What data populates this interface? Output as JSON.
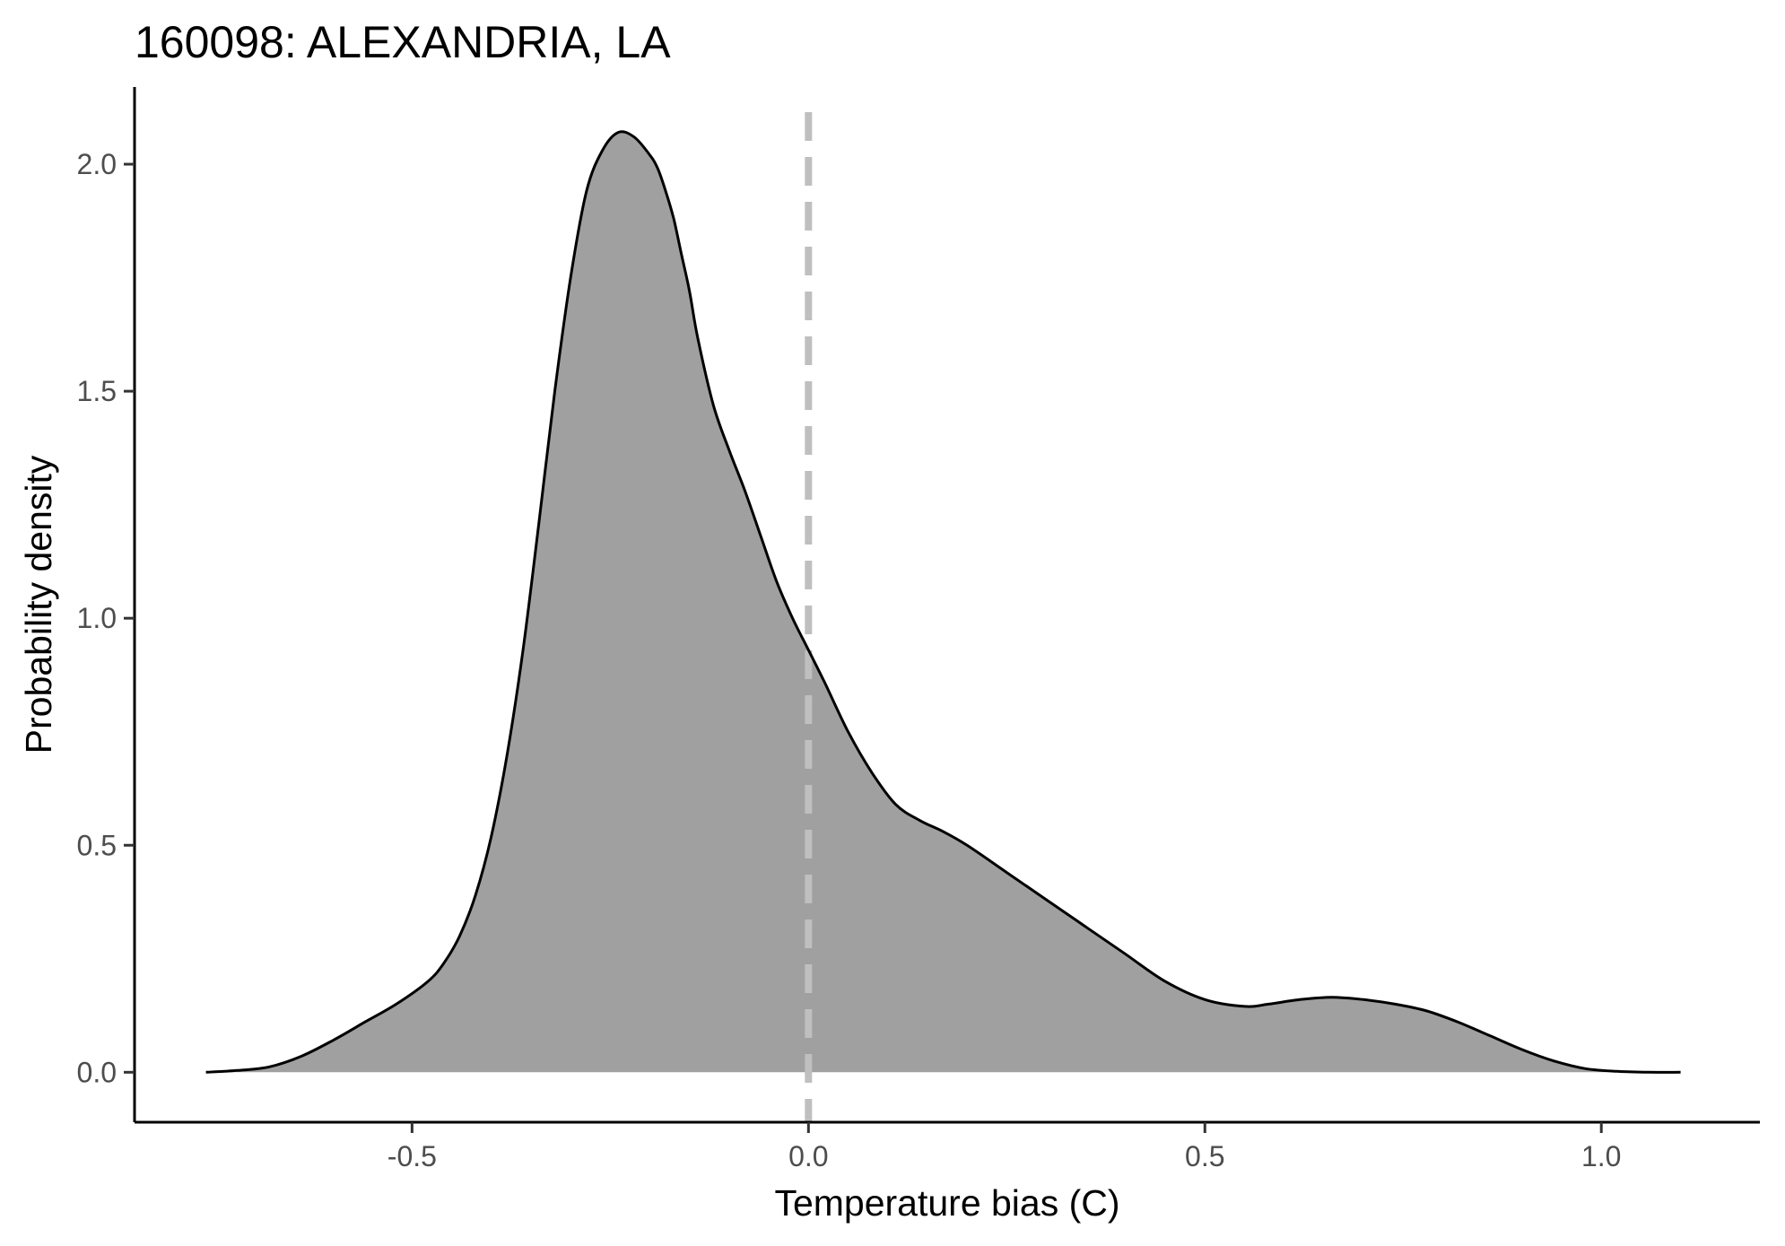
{
  "chart_data": {
    "type": "area",
    "title": "160098: ALEXANDRIA, LA",
    "xlabel": "Temperature bias (C)",
    "ylabel": "Probability density",
    "xlim": [
      -0.85,
      1.2
    ],
    "ylim": [
      -0.11,
      2.17
    ],
    "x_ticks": [
      -0.5,
      0.0,
      0.5,
      1.0
    ],
    "x_tick_labels": [
      "-0.5",
      "0.0",
      "0.5",
      "1.0"
    ],
    "y_ticks": [
      0.0,
      0.5,
      1.0,
      1.5,
      2.0
    ],
    "y_tick_labels": [
      "0.0",
      "0.5",
      "1.0",
      "1.5",
      "2.0"
    ],
    "grid": false,
    "legend": "none",
    "reference_line": {
      "x": 0.0,
      "style": "dashed",
      "color": "#bfbfbf"
    },
    "fill_color": "#a0a0a0",
    "line_color": "#000000",
    "series": [
      {
        "x": [
          -0.76,
          -0.72,
          -0.68,
          -0.64,
          -0.6,
          -0.56,
          -0.52,
          -0.48,
          -0.46,
          -0.44,
          -0.42,
          -0.4,
          -0.38,
          -0.36,
          -0.34,
          -0.32,
          -0.3,
          -0.28,
          -0.26,
          -0.24,
          -0.22,
          -0.2,
          -0.19,
          -0.18,
          -0.17,
          -0.16,
          -0.15,
          -0.14,
          -0.12,
          -0.1,
          -0.08,
          -0.06,
          -0.04,
          -0.02,
          0.0,
          0.02,
          0.05,
          0.08,
          0.11,
          0.14,
          0.17,
          0.2,
          0.25,
          0.3,
          0.35,
          0.4,
          0.45,
          0.5,
          0.55,
          0.58,
          0.62,
          0.66,
          0.7,
          0.74,
          0.78,
          0.82,
          0.86,
          0.9,
          0.94,
          0.98,
          1.02,
          1.06,
          1.1
        ],
        "y": [
          0.0,
          0.004,
          0.012,
          0.035,
          0.07,
          0.11,
          0.15,
          0.2,
          0.24,
          0.3,
          0.39,
          0.52,
          0.7,
          0.93,
          1.21,
          1.5,
          1.75,
          1.94,
          2.03,
          2.07,
          2.06,
          2.02,
          1.99,
          1.94,
          1.88,
          1.8,
          1.72,
          1.62,
          1.47,
          1.37,
          1.28,
          1.18,
          1.08,
          1.0,
          0.93,
          0.86,
          0.75,
          0.66,
          0.59,
          0.555,
          0.53,
          0.5,
          0.44,
          0.38,
          0.32,
          0.26,
          0.2,
          0.16,
          0.145,
          0.15,
          0.16,
          0.165,
          0.16,
          0.15,
          0.135,
          0.11,
          0.08,
          0.05,
          0.025,
          0.008,
          0.002,
          0.0,
          0.0
        ]
      }
    ]
  }
}
